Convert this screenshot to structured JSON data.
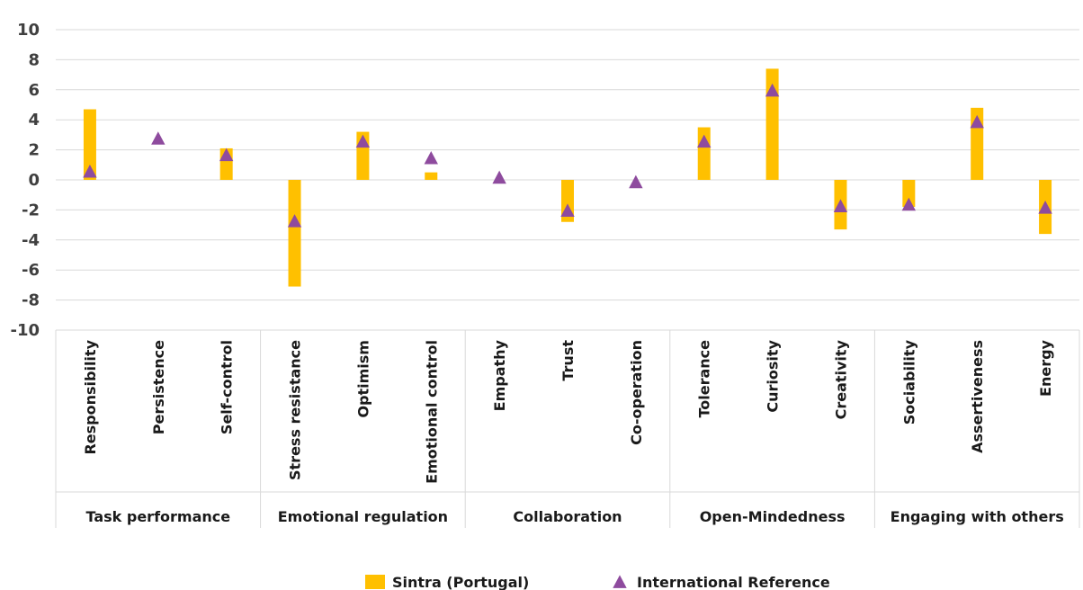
{
  "chart_data": {
    "type": "bar",
    "title": "",
    "xlabel": "",
    "ylabel": "",
    "ylim": [
      -10,
      10
    ],
    "yticks": [
      10,
      8,
      6,
      4,
      2,
      0,
      -2,
      -4,
      -6,
      -8,
      -10
    ],
    "grid": true,
    "legend_position": "bottom-center",
    "categories": [
      "Responsibility",
      "Persistence",
      "Self-control",
      "Stress resistance",
      "Optimism",
      "Emotional control",
      "Empathy",
      "Trust",
      "Co-operation",
      "Tolerance",
      "Curiosity",
      "Creativity",
      "Sociability",
      "Assertiveness",
      "Energy"
    ],
    "groups": [
      {
        "label": "Task performance",
        "count": 3
      },
      {
        "label": "Emotional regulation",
        "count": 3
      },
      {
        "label": "Collaboration",
        "count": 3
      },
      {
        "label": "Open-Mindedness",
        "count": 3
      },
      {
        "label": "Engaging with others",
        "count": 3
      }
    ],
    "series": [
      {
        "name": "Sintra (Portugal)",
        "kind": "bar",
        "color": "#FFC000",
        "values": [
          4.7,
          0,
          2.1,
          -7.1,
          3.2,
          0.5,
          0,
          -2.8,
          0,
          3.5,
          7.4,
          -3.3,
          -1.8,
          4.8,
          -3.6
        ]
      },
      {
        "name": "International Reference",
        "kind": "marker",
        "marker": "triangle",
        "color": "#8E4B9E",
        "values": [
          0.5,
          2.7,
          1.6,
          -2.8,
          2.5,
          1.4,
          0.1,
          -2.1,
          -0.2,
          2.5,
          5.9,
          -1.8,
          -1.7,
          3.8,
          -1.9
        ]
      }
    ]
  }
}
